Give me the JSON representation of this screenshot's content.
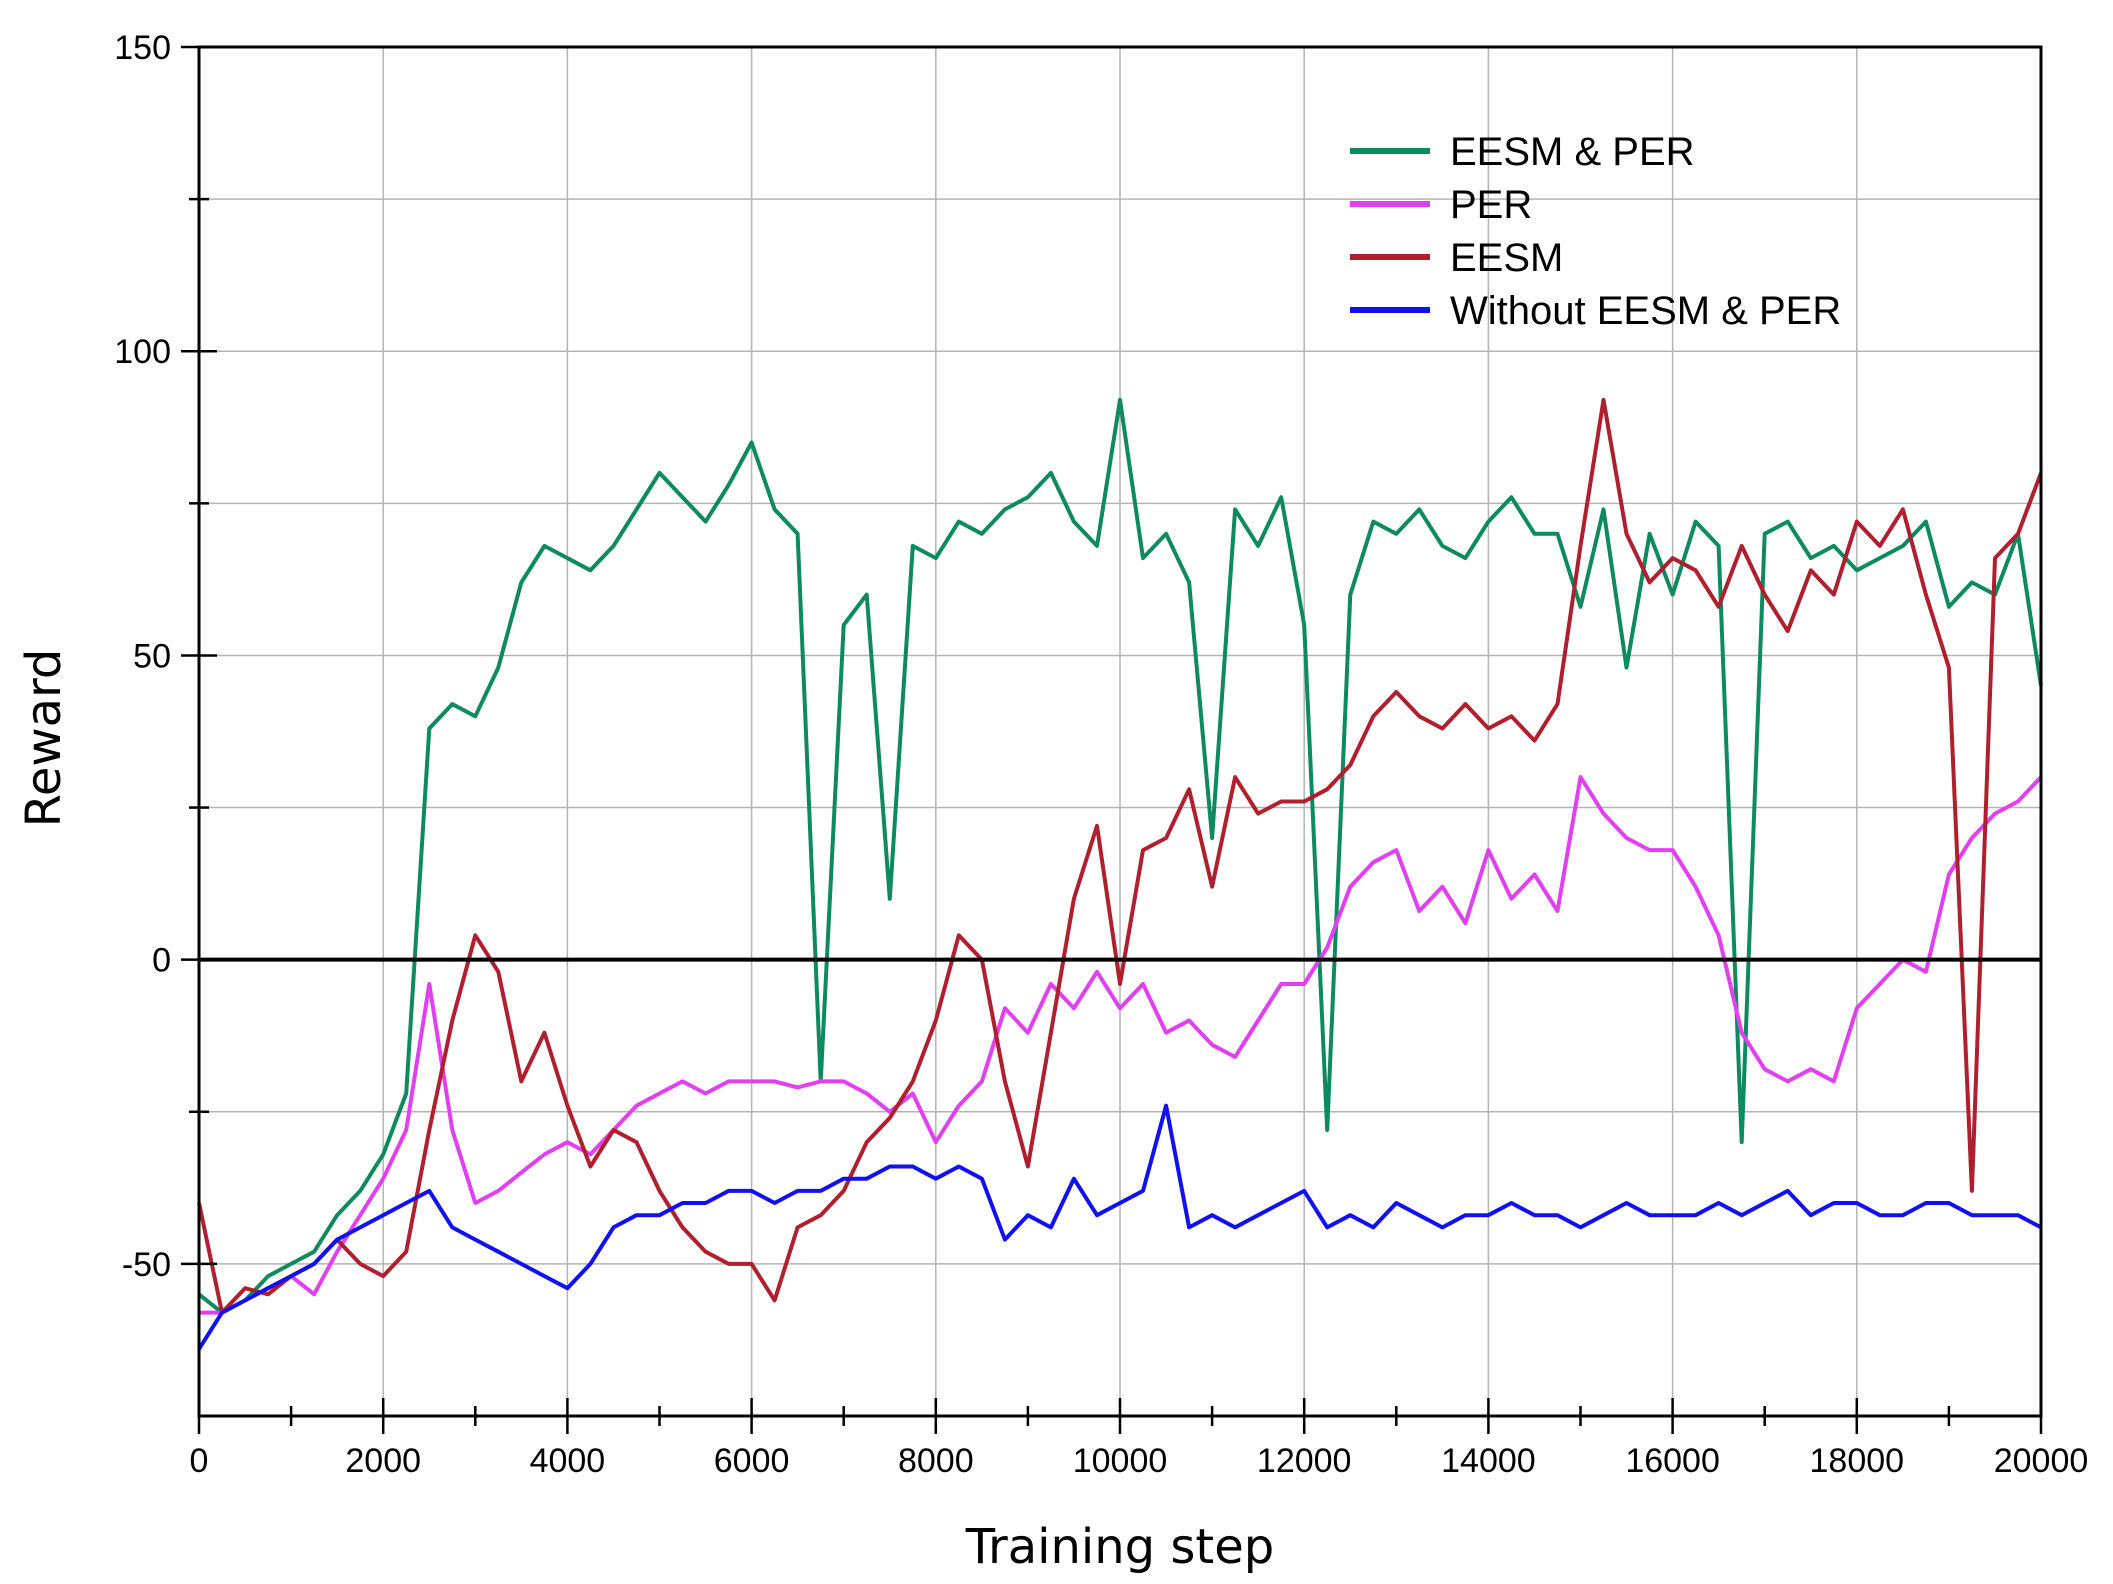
{
  "chart_data": {
    "type": "line",
    "title": "",
    "xlabel": "Training step",
    "ylabel": "Reward",
    "xlim": [
      0,
      20000
    ],
    "ylim": [
      -75,
      150
    ],
    "x_ticks": [
      0,
      2000,
      4000,
      6000,
      8000,
      10000,
      12000,
      14000,
      16000,
      18000,
      20000
    ],
    "y_ticks": [
      -50,
      0,
      50,
      100,
      150
    ],
    "grid": true,
    "zero_line": 0,
    "legend_position": "top-right",
    "x": [
      0,
      250,
      500,
      750,
      1000,
      1250,
      1500,
      1750,
      2000,
      2250,
      2500,
      2750,
      3000,
      3250,
      3500,
      3750,
      4000,
      4250,
      4500,
      4750,
      5000,
      5250,
      5500,
      5750,
      6000,
      6250,
      6500,
      6750,
      7000,
      7250,
      7500,
      7750,
      8000,
      8250,
      8500,
      8750,
      9000,
      9250,
      9500,
      9750,
      10000,
      10250,
      10500,
      10750,
      11000,
      11250,
      11500,
      11750,
      12000,
      12250,
      12500,
      12750,
      13000,
      13250,
      13500,
      13750,
      14000,
      14250,
      14500,
      14750,
      15000,
      15250,
      15500,
      15750,
      16000,
      16250,
      16500,
      16750,
      17000,
      17250,
      17500,
      17750,
      18000,
      18250,
      18500,
      18750,
      19000,
      19250,
      19500,
      19750,
      20000
    ],
    "series": [
      {
        "name": "EESM & PER",
        "color": "#0e8a5f",
        "values": [
          -55,
          -58,
          -56,
          -52,
          -50,
          -48,
          -42,
          -38,
          -32,
          -22,
          38,
          42,
          40,
          48,
          62,
          68,
          66,
          64,
          68,
          74,
          80,
          76,
          72,
          78,
          85,
          74,
          70,
          -20,
          55,
          60,
          10,
          68,
          66,
          72,
          70,
          74,
          76,
          80,
          72,
          68,
          92,
          66,
          70,
          62,
          20,
          74,
          68,
          76,
          55,
          -28,
          60,
          72,
          70,
          74,
          68,
          66,
          72,
          76,
          70,
          70,
          58,
          74,
          48,
          70,
          60,
          72,
          68,
          -30,
          70,
          72,
          66,
          68,
          64,
          66,
          68,
          72,
          58,
          62,
          60,
          70,
          45
        ]
      },
      {
        "name": "PER",
        "color": "#e040f0",
        "values": [
          -58,
          -58,
          -56,
          -54,
          -52,
          -55,
          -48,
          -42,
          -36,
          -28,
          -4,
          -28,
          -40,
          -38,
          -35,
          -32,
          -30,
          -32,
          -28,
          -24,
          -22,
          -20,
          -22,
          -20,
          -20,
          -20,
          -21,
          -20,
          -20,
          -22,
          -25,
          -22,
          -30,
          -24,
          -20,
          -8,
          -12,
          -4,
          -8,
          -2,
          -8,
          -4,
          -12,
          -10,
          -14,
          -16,
          -10,
          -4,
          -4,
          2,
          12,
          16,
          18,
          8,
          12,
          6,
          18,
          10,
          14,
          8,
          30,
          24,
          20,
          18,
          18,
          12,
          4,
          -12,
          -18,
          -20,
          -18,
          -20,
          -8,
          -4,
          0,
          -2,
          14,
          20,
          24,
          26,
          30
        ]
      },
      {
        "name": "EESM",
        "color": "#b01f2e",
        "values": [
          -40,
          -58,
          -54,
          -55,
          -52,
          -50,
          -46,
          -50,
          -52,
          -48,
          -28,
          -10,
          4,
          -2,
          -20,
          -12,
          -24,
          -34,
          -28,
          -30,
          -38,
          -44,
          -48,
          -50,
          -50,
          -56,
          -44,
          -42,
          -38,
          -30,
          -26,
          -20,
          -10,
          4,
          0,
          -20,
          -34,
          -12,
          10,
          22,
          -4,
          18,
          20,
          28,
          12,
          30,
          24,
          26,
          26,
          28,
          32,
          40,
          44,
          40,
          38,
          42,
          38,
          40,
          36,
          42,
          68,
          92,
          70,
          62,
          66,
          64,
          58,
          68,
          60,
          54,
          64,
          60,
          72,
          68,
          74,
          60,
          48,
          -38,
          66,
          70,
          80
        ]
      },
      {
        "name": "Without EESM & PER",
        "color": "#1010f0",
        "values": [
          -64,
          -58,
          -56,
          -54,
          -52,
          -50,
          -46,
          -44,
          -42,
          -40,
          -38,
          -44,
          -46,
          -48,
          -50,
          -52,
          -54,
          -50,
          -44,
          -42,
          -42,
          -40,
          -40,
          -38,
          -38,
          -40,
          -38,
          -38,
          -36,
          -36,
          -34,
          -34,
          -36,
          -34,
          -36,
          -46,
          -42,
          -44,
          -36,
          -42,
          -40,
          -38,
          -24,
          -44,
          -42,
          -44,
          -42,
          -40,
          -38,
          -44,
          -42,
          -44,
          -40,
          -42,
          -44,
          -42,
          -42,
          -40,
          -42,
          -42,
          -44,
          -42,
          -40,
          -42,
          -42,
          -42,
          -40,
          -42,
          -40,
          -38,
          -42,
          -40,
          -40,
          -42,
          -42,
          -40,
          -40,
          -42,
          -42,
          -42,
          -44
        ]
      }
    ]
  }
}
